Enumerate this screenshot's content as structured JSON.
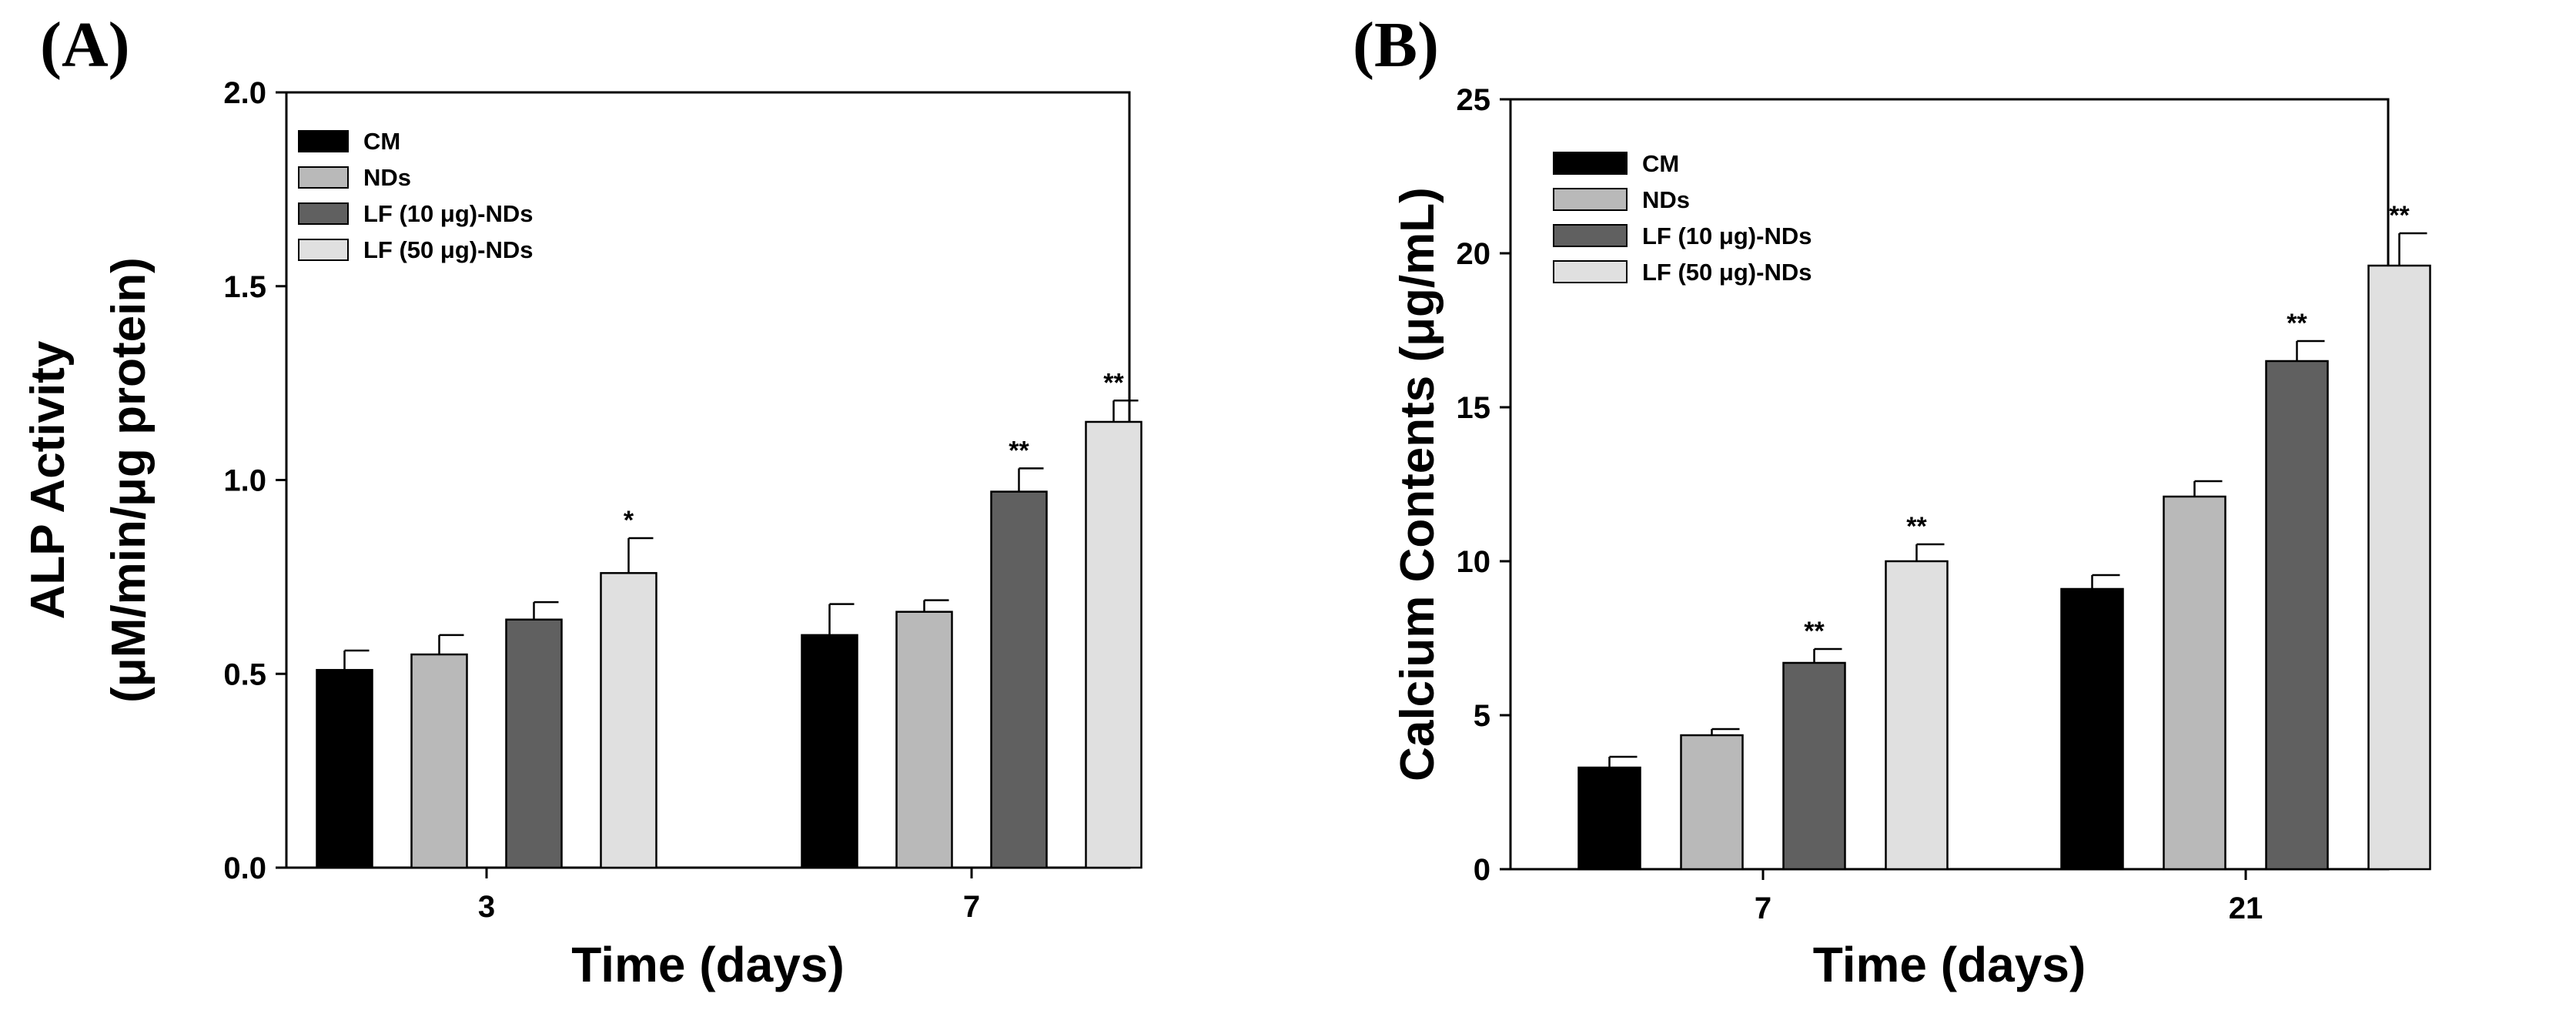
{
  "chart_data": [
    {
      "type": "bar",
      "panel_label": "(A)",
      "xlabel": "Time (days)",
      "ylabel_line1": "ALP Activity",
      "ylabel_line2": "(μM/min/μg protein)",
      "ylim": [
        0,
        2.0
      ],
      "yticks": [
        "0.0",
        "0.5",
        "1.0",
        "1.5",
        "2.0"
      ],
      "ytick_values": [
        0,
        0.5,
        1.0,
        1.5,
        2.0
      ],
      "categories": [
        "3",
        "7"
      ],
      "legend_position": "top-left",
      "series": [
        {
          "name": "CM",
          "color": "#000000",
          "values": [
            0.51,
            0.6
          ],
          "errors": [
            0.05,
            0.08
          ],
          "sig": [
            "",
            ""
          ]
        },
        {
          "name": "NDs",
          "color": "#b9b9b9",
          "values": [
            0.55,
            0.66
          ],
          "errors": [
            0.05,
            0.03
          ],
          "sig": [
            "",
            ""
          ]
        },
        {
          "name": "LF (10 μg)-NDs",
          "color": "#606060",
          "values": [
            0.64,
            0.97
          ],
          "errors": [
            0.045,
            0.06
          ],
          "sig": [
            "",
            "**"
          ]
        },
        {
          "name": "LF (50 μg)-NDs",
          "color": "#e0e0e0",
          "values": [
            0.76,
            1.15
          ],
          "errors": [
            0.09,
            0.055
          ],
          "sig": [
            "*",
            "**"
          ]
        }
      ]
    },
    {
      "type": "bar",
      "panel_label": "(B)",
      "xlabel": "Time (days)",
      "ylabel_line1": "Calcium Contents (μg/mL)",
      "ylabel_line2": "",
      "ylim": [
        0,
        25
      ],
      "yticks": [
        "0",
        "5",
        "10",
        "15",
        "20",
        "25"
      ],
      "ytick_values": [
        0,
        5,
        10,
        15,
        20,
        25
      ],
      "categories": [
        "7",
        "21"
      ],
      "legend_position": "top-left",
      "series": [
        {
          "name": "CM",
          "color": "#000000",
          "values": [
            3.3,
            9.1
          ],
          "errors": [
            0.35,
            0.45
          ],
          "sig": [
            "",
            ""
          ]
        },
        {
          "name": "NDs",
          "color": "#b9b9b9",
          "values": [
            4.35,
            12.1
          ],
          "errors": [
            0.2,
            0.5
          ],
          "sig": [
            "",
            ""
          ]
        },
        {
          "name": "LF (10 μg)-NDs",
          "color": "#606060",
          "values": [
            6.7,
            16.5
          ],
          "errors": [
            0.45,
            0.65
          ],
          "sig": [
            "**",
            "**"
          ]
        },
        {
          "name": "LF (50 μg)-NDs",
          "color": "#e0e0e0",
          "values": [
            10.0,
            19.6
          ],
          "errors": [
            0.55,
            1.05
          ],
          "sig": [
            "**",
            "**"
          ]
        }
      ]
    }
  ]
}
